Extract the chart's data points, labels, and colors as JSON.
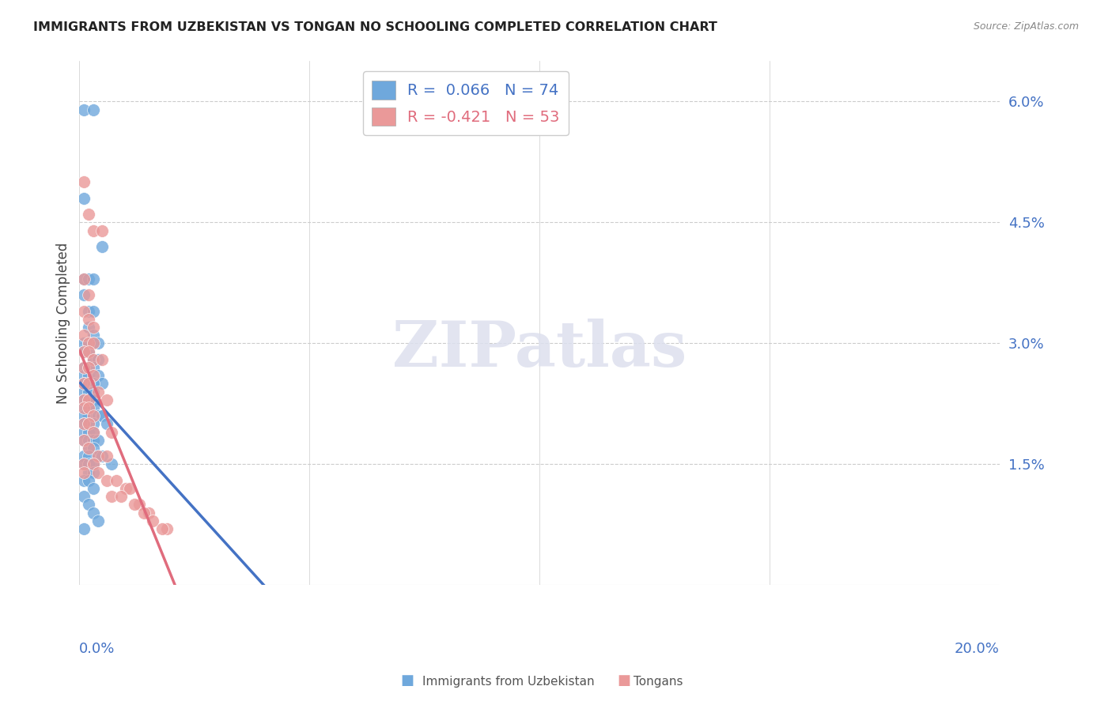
{
  "title": "IMMIGRANTS FROM UZBEKISTAN VS TONGAN NO SCHOOLING COMPLETED CORRELATION CHART",
  "source": "Source: ZipAtlas.com",
  "ylabel": "No Schooling Completed",
  "yticks": [
    "6.0%",
    "4.5%",
    "3.0%",
    "1.5%"
  ],
  "ytick_vals": [
    0.06,
    0.045,
    0.03,
    0.015
  ],
  "xlim": [
    0.0,
    0.2
  ],
  "ylim": [
    0.0,
    0.065
  ],
  "uzbek_color": "#6fa8dc",
  "tongan_color": "#ea9999",
  "uzbek_line_color": "#4472c4",
  "tongan_line_color": "#e06c7d",
  "watermark": "ZIPatlas",
  "uzbek_scatter": [
    [
      0.001,
      0.059
    ],
    [
      0.001,
      0.048
    ],
    [
      0.003,
      0.059
    ],
    [
      0.005,
      0.042
    ],
    [
      0.001,
      0.038
    ],
    [
      0.002,
      0.038
    ],
    [
      0.003,
      0.038
    ],
    [
      0.001,
      0.036
    ],
    [
      0.002,
      0.034
    ],
    [
      0.003,
      0.034
    ],
    [
      0.002,
      0.032
    ],
    [
      0.003,
      0.031
    ],
    [
      0.001,
      0.03
    ],
    [
      0.002,
      0.03
    ],
    [
      0.003,
      0.03
    ],
    [
      0.004,
      0.03
    ],
    [
      0.001,
      0.029
    ],
    [
      0.002,
      0.029
    ],
    [
      0.003,
      0.028
    ],
    [
      0.004,
      0.028
    ],
    [
      0.001,
      0.027
    ],
    [
      0.002,
      0.027
    ],
    [
      0.003,
      0.027
    ],
    [
      0.001,
      0.026
    ],
    [
      0.002,
      0.026
    ],
    [
      0.004,
      0.026
    ],
    [
      0.005,
      0.025
    ],
    [
      0.001,
      0.025
    ],
    [
      0.002,
      0.025
    ],
    [
      0.003,
      0.025
    ],
    [
      0.001,
      0.024
    ],
    [
      0.002,
      0.024
    ],
    [
      0.003,
      0.024
    ],
    [
      0.001,
      0.023
    ],
    [
      0.002,
      0.023
    ],
    [
      0.003,
      0.023
    ],
    [
      0.002,
      0.022
    ],
    [
      0.001,
      0.022
    ],
    [
      0.003,
      0.022
    ],
    [
      0.002,
      0.021
    ],
    [
      0.001,
      0.021
    ],
    [
      0.004,
      0.021
    ],
    [
      0.005,
      0.021
    ],
    [
      0.001,
      0.02
    ],
    [
      0.002,
      0.02
    ],
    [
      0.003,
      0.02
    ],
    [
      0.006,
      0.02
    ],
    [
      0.001,
      0.019
    ],
    [
      0.002,
      0.019
    ],
    [
      0.003,
      0.019
    ],
    [
      0.001,
      0.018
    ],
    [
      0.002,
      0.018
    ],
    [
      0.003,
      0.018
    ],
    [
      0.004,
      0.018
    ],
    [
      0.002,
      0.017
    ],
    [
      0.003,
      0.017
    ],
    [
      0.004,
      0.016
    ],
    [
      0.005,
      0.016
    ],
    [
      0.001,
      0.016
    ],
    [
      0.002,
      0.016
    ],
    [
      0.001,
      0.015
    ],
    [
      0.002,
      0.015
    ],
    [
      0.003,
      0.015
    ],
    [
      0.007,
      0.015
    ],
    [
      0.002,
      0.014
    ],
    [
      0.003,
      0.014
    ],
    [
      0.001,
      0.013
    ],
    [
      0.002,
      0.013
    ],
    [
      0.003,
      0.012
    ],
    [
      0.001,
      0.011
    ],
    [
      0.002,
      0.01
    ],
    [
      0.003,
      0.009
    ],
    [
      0.004,
      0.008
    ],
    [
      0.001,
      0.007
    ]
  ],
  "tongan_scatter": [
    [
      0.001,
      0.05
    ],
    [
      0.002,
      0.046
    ],
    [
      0.003,
      0.044
    ],
    [
      0.005,
      0.044
    ],
    [
      0.001,
      0.038
    ],
    [
      0.002,
      0.036
    ],
    [
      0.001,
      0.034
    ],
    [
      0.002,
      0.033
    ],
    [
      0.003,
      0.032
    ],
    [
      0.001,
      0.031
    ],
    [
      0.002,
      0.03
    ],
    [
      0.003,
      0.03
    ],
    [
      0.001,
      0.029
    ],
    [
      0.002,
      0.029
    ],
    [
      0.003,
      0.028
    ],
    [
      0.005,
      0.028
    ],
    [
      0.001,
      0.027
    ],
    [
      0.002,
      0.027
    ],
    [
      0.003,
      0.026
    ],
    [
      0.001,
      0.025
    ],
    [
      0.002,
      0.025
    ],
    [
      0.004,
      0.024
    ],
    [
      0.001,
      0.023
    ],
    [
      0.002,
      0.023
    ],
    [
      0.006,
      0.023
    ],
    [
      0.001,
      0.022
    ],
    [
      0.002,
      0.022
    ],
    [
      0.003,
      0.021
    ],
    [
      0.001,
      0.02
    ],
    [
      0.002,
      0.02
    ],
    [
      0.003,
      0.019
    ],
    [
      0.007,
      0.019
    ],
    [
      0.001,
      0.018
    ],
    [
      0.002,
      0.017
    ],
    [
      0.004,
      0.016
    ],
    [
      0.006,
      0.016
    ],
    [
      0.001,
      0.015
    ],
    [
      0.003,
      0.015
    ],
    [
      0.001,
      0.014
    ],
    [
      0.004,
      0.014
    ],
    [
      0.006,
      0.013
    ],
    [
      0.008,
      0.013
    ],
    [
      0.01,
      0.012
    ],
    [
      0.011,
      0.012
    ],
    [
      0.007,
      0.011
    ],
    [
      0.009,
      0.011
    ],
    [
      0.013,
      0.01
    ],
    [
      0.012,
      0.01
    ],
    [
      0.015,
      0.009
    ],
    [
      0.014,
      0.009
    ],
    [
      0.016,
      0.008
    ],
    [
      0.019,
      0.007
    ],
    [
      0.018,
      0.007
    ]
  ]
}
